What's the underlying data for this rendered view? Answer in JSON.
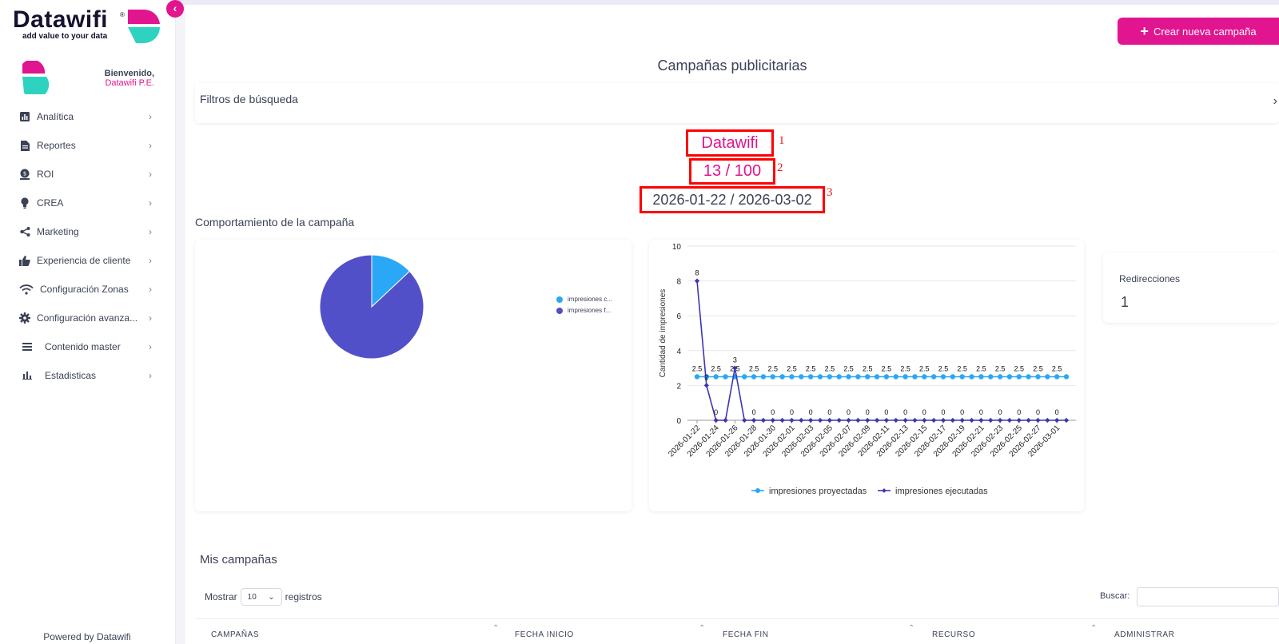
{
  "brand": {
    "name": "Datawifi",
    "reg": "®",
    "tagline": "add value to your data",
    "accent": "#e0158f",
    "teal": "#2ed3c0"
  },
  "user": {
    "welcome": "Bienvenido,",
    "name": "Datawifi P.E."
  },
  "sidebar": {
    "items": [
      {
        "label": "Analítica",
        "icon": "analytics-icon"
      },
      {
        "label": "Reportes",
        "icon": "report-icon"
      },
      {
        "label": "ROI",
        "icon": "money-icon"
      },
      {
        "label": "CREA",
        "icon": "lightbulb-icon"
      },
      {
        "label": "Marketing",
        "icon": "share-icon"
      },
      {
        "label": "Experiencia de cliente",
        "icon": "thumbs-up-icon"
      },
      {
        "label": "Configuración Zonas",
        "icon": "wifi-icon"
      },
      {
        "label": "Configuración avanza...",
        "icon": "gear-icon"
      },
      {
        "label": "Contenido master",
        "icon": "list-icon"
      },
      {
        "label": "Estadisticas",
        "icon": "bar-chart-icon"
      }
    ],
    "footer": "Powered by Datawifi"
  },
  "header": {
    "create_button": "Crear nueva campaña",
    "page_title": "Campañas publicitarias"
  },
  "filters": {
    "label": "Filtros de búsqueda"
  },
  "campaign": {
    "name": "Datawifi",
    "count": "13 / 100",
    "dates": "2026-01-22 / 2026-03-02",
    "annotations": [
      "1",
      "2",
      "3"
    ]
  },
  "behavior": {
    "title": "Comportamiento de la campaña"
  },
  "redirections": {
    "label": "Redirecciones",
    "value": "1"
  },
  "chart_data": [
    {
      "type": "pie",
      "labels": [
        "impresiones c...",
        "impresiones f..."
      ],
      "values": [
        13,
        87
      ],
      "colors": [
        "#2aa8f5",
        "#5250c8"
      ],
      "legend": "right"
    },
    {
      "type": "line",
      "ylabel": "Cantidad de impresiones",
      "ylim": [
        0,
        10
      ],
      "yticks": [
        0,
        2,
        4,
        6,
        8,
        10
      ],
      "legend": "bottom",
      "x": [
        "2026-01-22",
        "2026-01-23",
        "2026-01-24",
        "2026-01-25",
        "2026-01-26",
        "2026-01-27",
        "2026-01-28",
        "2026-01-29",
        "2026-01-30",
        "2026-01-31",
        "2026-02-01",
        "2026-02-02",
        "2026-02-03",
        "2026-02-04",
        "2026-02-05",
        "2026-02-06",
        "2026-02-07",
        "2026-02-08",
        "2026-02-09",
        "2026-02-10",
        "2026-02-11",
        "2026-02-12",
        "2026-02-13",
        "2026-02-14",
        "2026-02-15",
        "2026-02-16",
        "2026-02-17",
        "2026-02-18",
        "2026-02-19",
        "2026-02-20",
        "2026-02-21",
        "2026-02-22",
        "2026-02-23",
        "2026-02-24",
        "2026-02-25",
        "2026-02-26",
        "2026-02-27",
        "2026-02-28",
        "2026-03-01",
        "2026-03-02"
      ],
      "x_tick_labels": [
        "2026-01-22",
        "2026-01-24",
        "2026-01-26",
        "2026-01-28",
        "2026-01-30",
        "2026-02-01",
        "2026-02-03",
        "2026-02-05",
        "2026-02-07",
        "2026-02-09",
        "2026-02-11",
        "2026-02-13",
        "2026-02-15",
        "2026-02-17",
        "2026-02-19",
        "2026-02-21",
        "2026-02-23",
        "2026-02-25",
        "2026-02-27",
        "2026-03-01"
      ],
      "series": [
        {
          "name": "impresiones proyectadas",
          "color": "#2aa8f5",
          "values": [
            2.5,
            2.5,
            2.5,
            2.5,
            2.5,
            2.5,
            2.5,
            2.5,
            2.5,
            2.5,
            2.5,
            2.5,
            2.5,
            2.5,
            2.5,
            2.5,
            2.5,
            2.5,
            2.5,
            2.5,
            2.5,
            2.5,
            2.5,
            2.5,
            2.5,
            2.5,
            2.5,
            2.5,
            2.5,
            2.5,
            2.5,
            2.5,
            2.5,
            2.5,
            2.5,
            2.5,
            2.5,
            2.5,
            2.5,
            2.5
          ]
        },
        {
          "name": "impresiones ejecutadas",
          "color": "#3d36b0",
          "values": [
            8,
            2,
            0,
            0,
            3,
            0,
            0,
            0,
            0,
            0,
            0,
            0,
            0,
            0,
            0,
            0,
            0,
            0,
            0,
            0,
            0,
            0,
            0,
            0,
            0,
            0,
            0,
            0,
            0,
            0,
            0,
            0,
            0,
            0,
            0,
            0,
            0,
            0,
            0,
            0
          ]
        }
      ]
    }
  ],
  "table": {
    "title": "Mis campañas",
    "show_label": "Mostrar",
    "page_size": "10",
    "records_label": "registros",
    "search_label": "Buscar:",
    "columns": [
      "CAMPAÑAS",
      "FECHA INICIO",
      "FECHA FIN",
      "RECURSO",
      "ADMINISTRAR"
    ]
  }
}
